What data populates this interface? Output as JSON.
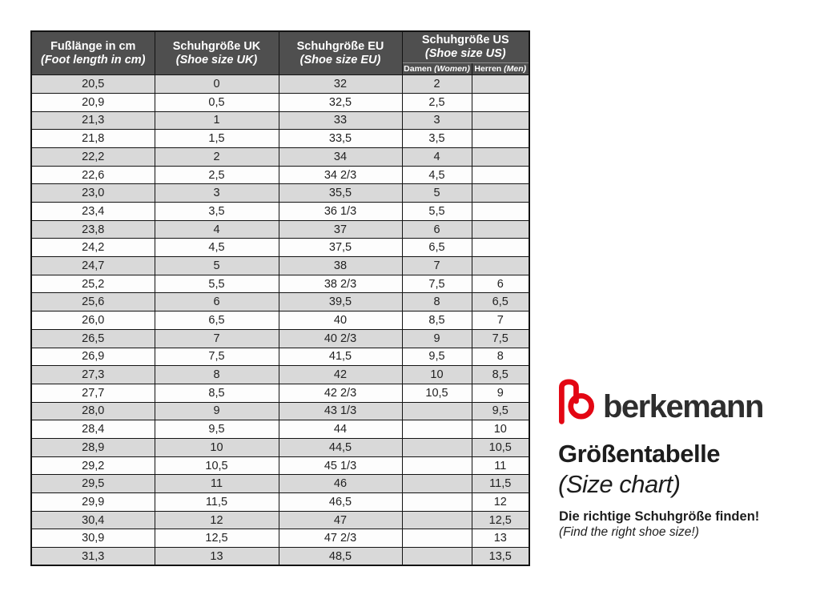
{
  "brand": {
    "wordmark": "berkemann"
  },
  "title_block": {
    "title_de": "Größentabelle",
    "title_en": "(Size chart)",
    "note_de": "Die richtige Schuhgröße finden!",
    "note_en": "(Find the right shoe size!)"
  },
  "colors": {
    "logo_red": "#e30613",
    "header_bg": "#4f4f4f",
    "row_stripe": "#d9d9d9",
    "border": "#131313",
    "wordmark_color": "#2e2e2e"
  },
  "chart_data": {
    "type": "table",
    "title": "Größentabelle (Size chart)",
    "headers": [
      {
        "de": "Fußlänge in cm",
        "en": "(Foot length in cm)"
      },
      {
        "de": "Schuhgröße UK",
        "en": "(Shoe size UK)"
      },
      {
        "de": "Schuhgröße EU",
        "en": "(Shoe size EU)"
      },
      {
        "de": "Schuhgröße US",
        "en": "(Shoe size US)"
      }
    ],
    "us_subheaders": [
      {
        "de": "Damen",
        "en": "(Women)"
      },
      {
        "de": "Herren",
        "en": "(Men)"
      }
    ],
    "columns": [
      "Fußlänge in cm (Foot length in cm)",
      "Schuhgröße UK (Shoe size UK)",
      "Schuhgröße EU (Shoe size EU)",
      "Schuhgröße US Damen (Women)",
      "Schuhgröße US Herren (Men)"
    ],
    "rows": [
      [
        "20,5",
        "0",
        "32",
        "2",
        ""
      ],
      [
        "20,9",
        "0,5",
        "32,5",
        "2,5",
        ""
      ],
      [
        "21,3",
        "1",
        "33",
        "3",
        ""
      ],
      [
        "21,8",
        "1,5",
        "33,5",
        "3,5",
        ""
      ],
      [
        "22,2",
        "2",
        "34",
        "4",
        ""
      ],
      [
        "22,6",
        "2,5",
        "34 2/3",
        "4,5",
        ""
      ],
      [
        "23,0",
        "3",
        "35,5",
        "5",
        ""
      ],
      [
        "23,4",
        "3,5",
        "36 1/3",
        "5,5",
        ""
      ],
      [
        "23,8",
        "4",
        "37",
        "6",
        ""
      ],
      [
        "24,2",
        "4,5",
        "37,5",
        "6,5",
        ""
      ],
      [
        "24,7",
        "5",
        "38",
        "7",
        ""
      ],
      [
        "25,2",
        "5,5",
        "38 2/3",
        "7,5",
        "6"
      ],
      [
        "25,6",
        "6",
        "39,5",
        "8",
        "6,5"
      ],
      [
        "26,0",
        "6,5",
        "40",
        "8,5",
        "7"
      ],
      [
        "26,5",
        "7",
        "40 2/3",
        "9",
        "7,5"
      ],
      [
        "26,9",
        "7,5",
        "41,5",
        "9,5",
        "8"
      ],
      [
        "27,3",
        "8",
        "42",
        "10",
        "8,5"
      ],
      [
        "27,7",
        "8,5",
        "42 2/3",
        "10,5",
        "9"
      ],
      [
        "28,0",
        "9",
        "43 1/3",
        "",
        "9,5"
      ],
      [
        "28,4",
        "9,5",
        "44",
        "",
        "10"
      ],
      [
        "28,9",
        "10",
        "44,5",
        "",
        "10,5"
      ],
      [
        "29,2",
        "10,5",
        "45 1/3",
        "",
        "11"
      ],
      [
        "29,5",
        "11",
        "46",
        "",
        "11,5"
      ],
      [
        "29,9",
        "11,5",
        "46,5",
        "",
        "12"
      ],
      [
        "30,4",
        "12",
        "47",
        "",
        "12,5"
      ],
      [
        "30,9",
        "12,5",
        "47 2/3",
        "",
        "13"
      ],
      [
        "31,3",
        "13",
        "48,5",
        "",
        "13,5"
      ]
    ]
  }
}
